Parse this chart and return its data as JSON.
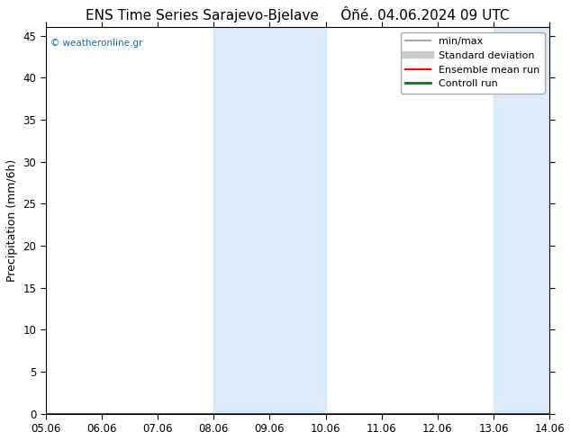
{
  "title": "ENS Time Series Sarajevo-Bjelave     Ôñé. 04.06.2024 09 UTC",
  "ylabel": "Precipitation (mm/6h)",
  "xlim": [
    0,
    9
  ],
  "ylim": [
    0,
    46
  ],
  "yticks": [
    0,
    5,
    10,
    15,
    20,
    25,
    30,
    35,
    40,
    45
  ],
  "xtick_labels": [
    "05.06",
    "06.06",
    "07.06",
    "08.06",
    "09.06",
    "10.06",
    "11.06",
    "12.06",
    "13.06",
    "14.06"
  ],
  "xtick_positions": [
    0,
    1,
    2,
    3,
    4,
    5,
    6,
    7,
    8,
    9
  ],
  "shaded_regions": [
    {
      "xmin": 3.0,
      "xmax": 4.0,
      "color": "#daeaf7"
    },
    {
      "xmin": 4.0,
      "xmax": 5.0,
      "color": "#daeaf7"
    },
    {
      "xmin": 8.0,
      "xmax": 9.0,
      "color": "#daeaf7"
    }
  ],
  "watermark": "© weatheronline.gr",
  "legend_entries": [
    {
      "label": "min/max",
      "color": "#aaaaaa",
      "lw": 1.5,
      "linestyle": "-"
    },
    {
      "label": "Standard deviation",
      "color": "#cccccc",
      "lw": 6,
      "linestyle": "-"
    },
    {
      "label": "Ensemble mean run",
      "color": "red",
      "lw": 1.5,
      "linestyle": "-"
    },
    {
      "label": "Controll run",
      "color": "green",
      "lw": 2,
      "linestyle": "-"
    }
  ],
  "bg_color": "#ffffff",
  "title_fontsize": 11,
  "axis_fontsize": 9,
  "tick_fontsize": 8.5
}
